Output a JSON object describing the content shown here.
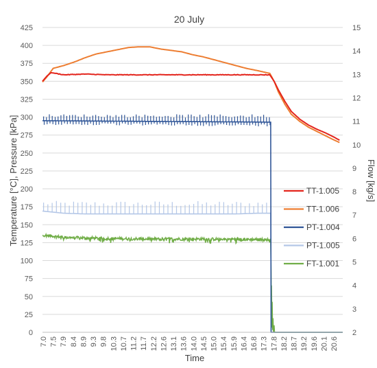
{
  "chart_data": {
    "type": "line",
    "title": "20 July",
    "xlabel": "Time",
    "ylabel_left": "Temperature [°C], Pressure [kPa]",
    "ylabel_right": "Flow [kg/s]",
    "xlim": [
      7.0,
      21.0
    ],
    "ylim_left": [
      0,
      425
    ],
    "ylim_right": [
      2,
      15
    ],
    "y_ticks_left": [
      0,
      25,
      50,
      75,
      100,
      125,
      150,
      175,
      200,
      225,
      250,
      275,
      300,
      325,
      350,
      375,
      400,
      425
    ],
    "y_ticks_right": [
      2,
      3,
      4,
      5,
      6,
      7,
      8,
      9,
      10,
      11,
      12,
      13,
      14,
      15
    ],
    "x_tick_labels": [
      "7.0",
      "7.5",
      "7.9",
      "8.4",
      "8.9",
      "9.3",
      "9.8",
      "10.3",
      "10.7",
      "11.2",
      "11.7",
      "12.2",
      "12.6",
      "13.1",
      "13.6",
      "14.0",
      "14.5",
      "15.0",
      "15.4",
      "15.9",
      "16.4",
      "16.8",
      "17.3",
      "17.8",
      "18.2",
      "18.7",
      "19.2",
      "19.6",
      "20.1",
      "20.6"
    ],
    "grid": "horizontal",
    "legend_position": "right",
    "series": [
      {
        "name": "TT-1.005",
        "axis": "left",
        "color": "#e3241c",
        "x": [
          7.0,
          7.2,
          7.4,
          7.6,
          8.0,
          9.0,
          10.0,
          12.0,
          14.0,
          16.0,
          17.0,
          17.6,
          17.8,
          18.0,
          18.3,
          18.6,
          19.0,
          19.4,
          19.8,
          20.2,
          20.6,
          20.9
        ],
        "y": [
          350,
          357,
          362,
          361,
          359,
          360,
          359,
          359,
          359,
          359,
          359,
          359,
          350,
          338,
          322,
          308,
          297,
          289,
          283,
          278,
          272,
          267
        ]
      },
      {
        "name": "TT-1.006",
        "axis": "left",
        "color": "#ed7d31",
        "x": [
          7.0,
          7.2,
          7.5,
          8.0,
          8.5,
          9.0,
          9.5,
          10.0,
          10.5,
          11.0,
          11.5,
          12.0,
          12.5,
          13.0,
          13.5,
          14.0,
          14.5,
          15.0,
          15.5,
          16.0,
          16.5,
          17.0,
          17.6,
          17.8,
          18.0,
          18.3,
          18.6,
          19.0,
          19.4,
          19.8,
          20.2,
          20.6,
          20.9
        ],
        "y": [
          349,
          356,
          368,
          372,
          377,
          383,
          388,
          391,
          394,
          397,
          398,
          398,
          395,
          393,
          391,
          387,
          384,
          380,
          376,
          372,
          368,
          365,
          361,
          350,
          335,
          318,
          304,
          294,
          286,
          280,
          274,
          268,
          264
        ]
      },
      {
        "name": "PT-1.004",
        "axis": "left",
        "color": "#2f5597",
        "x": [
          7.0,
          17.65,
          17.66,
          17.7,
          21.0
        ],
        "y": [
          295,
          293,
          293,
          0,
          0
        ],
        "spikes_peak": 304
      },
      {
        "name": "PT-1.005",
        "axis": "left",
        "color": "#b4c7e7",
        "x": [
          7.0,
          8.0,
          9.0,
          10.0,
          11.0,
          12.0,
          13.0,
          14.0,
          15.0,
          16.0,
          17.0,
          17.65,
          17.7,
          21.0
        ],
        "y": [
          169,
          166,
          165,
          165,
          165,
          165,
          165,
          165,
          165,
          165,
          166,
          166,
          0,
          0
        ],
        "spikes_peak": 183
      },
      {
        "name": "FT-1.001",
        "axis": "right",
        "color": "#70ad47",
        "x": [
          7.0,
          8.0,
          10.0,
          12.0,
          14.0,
          16.0,
          17.65,
          17.68,
          17.72,
          17.76,
          17.8,
          17.9,
          21.0
        ],
        "y": [
          6.15,
          6.05,
          6.0,
          5.98,
          5.98,
          5.97,
          5.95,
          4.4,
          2.9,
          2.15,
          2.0,
          2.0,
          2.0
        ]
      }
    ]
  }
}
